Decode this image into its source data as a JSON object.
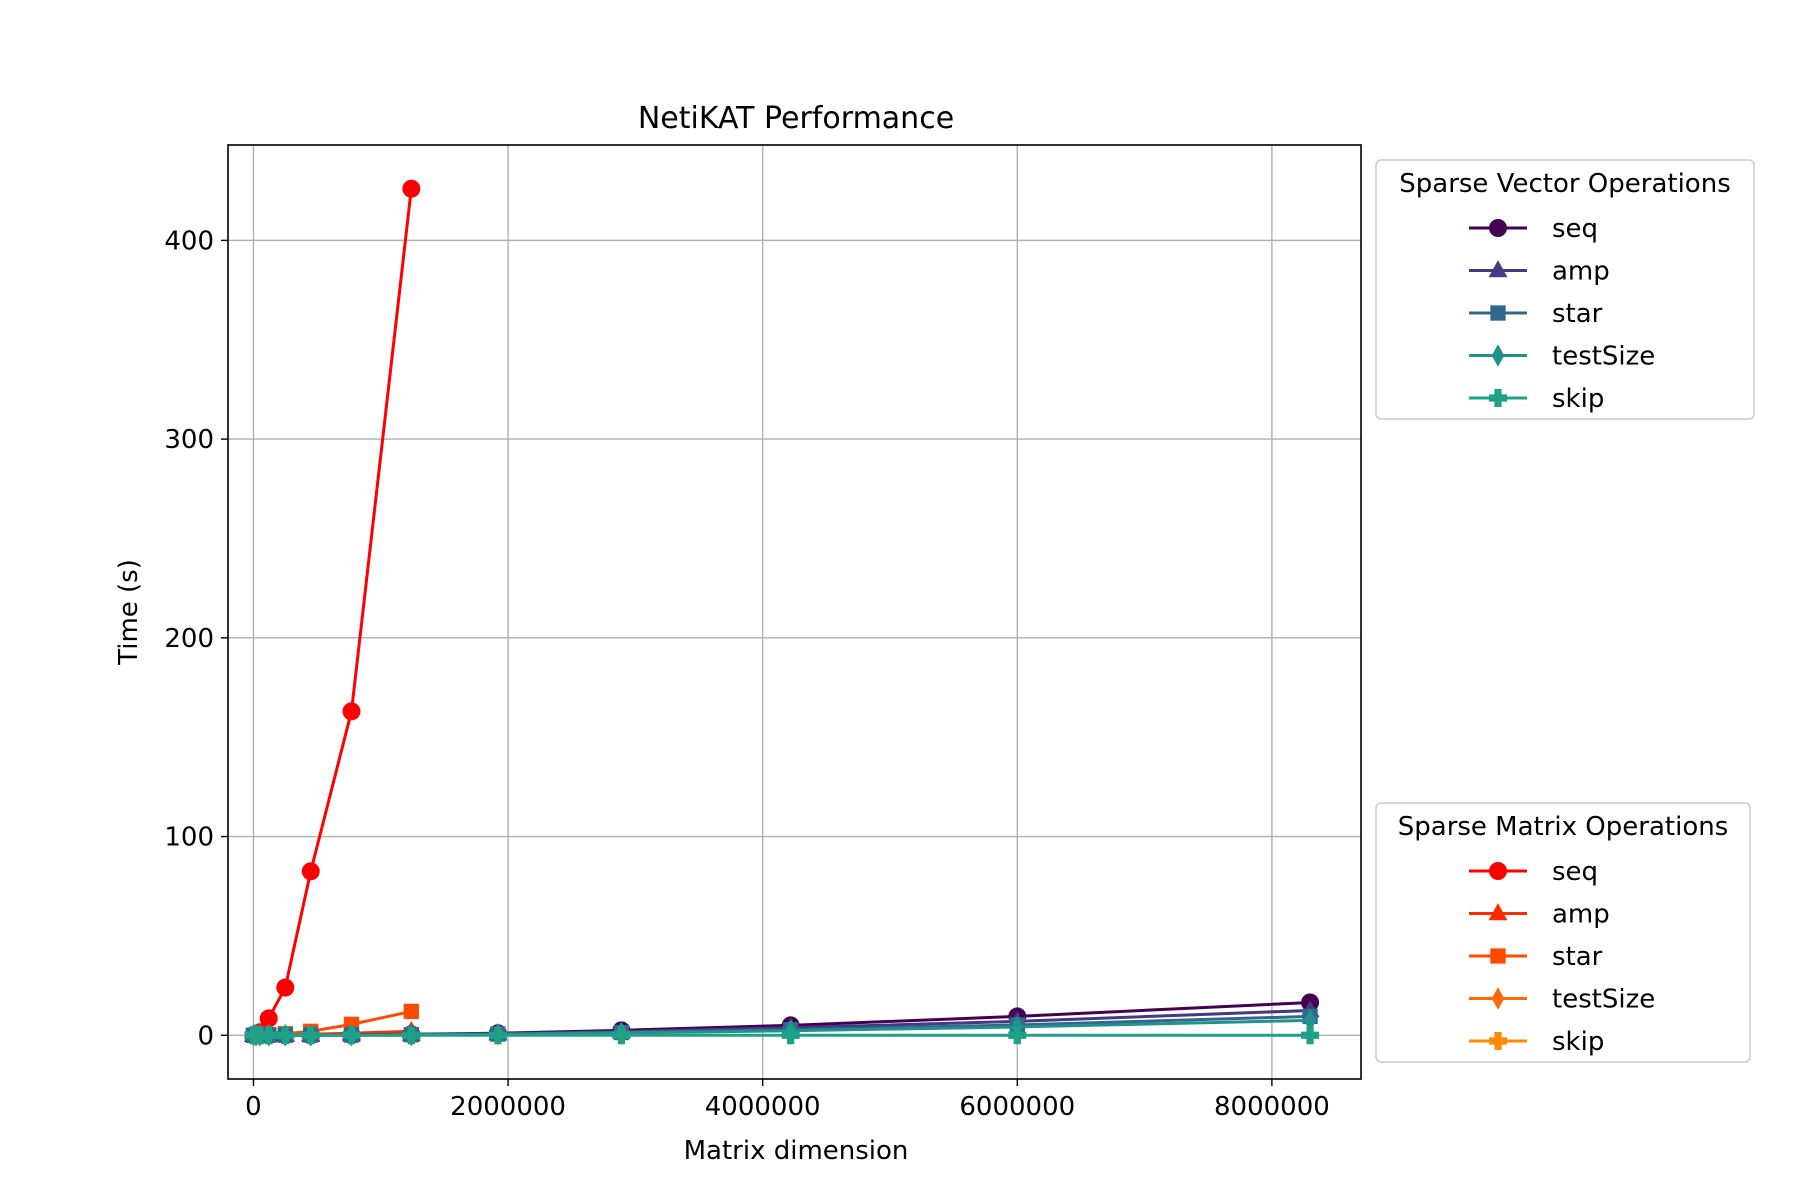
{
  "chart_data": {
    "type": "line",
    "title": "NetiKAT Performance",
    "xlabel": "Matrix dimension",
    "ylabel": "Time (s)",
    "xlim": [
      -200000,
      8700000
    ],
    "ylim": [
      -22,
      448
    ],
    "xticks": [
      0,
      2000000,
      4000000,
      6000000,
      8000000
    ],
    "xtick_labels": [
      "0",
      "2000000",
      "4000000",
      "6000000",
      "8000000"
    ],
    "yticks": [
      0,
      100,
      200,
      300,
      400
    ],
    "ytick_labels": [
      "0",
      "100",
      "200",
      "300",
      "400"
    ],
    "grid": true,
    "legends": [
      {
        "title": "Sparse Vector Operations",
        "placement": "upper-right-outside",
        "series": [
          {
            "name": "seq",
            "marker": "circle",
            "color": "#440154",
            "x": [
              0,
              20000,
              50000,
              120000,
              250000,
              450000,
              770000,
              1240000,
              1920000,
              2890000,
              4220000,
              6000000,
              8300000
            ],
            "y": [
              0,
              0,
              0,
              0,
              0,
              0.1,
              0.2,
              0.5,
              1.0,
              2.5,
              5.0,
              9.5,
              16.5
            ]
          },
          {
            "name": "amp",
            "marker": "triangle",
            "color": "#443983",
            "x": [
              0,
              20000,
              50000,
              120000,
              250000,
              450000,
              770000,
              1240000,
              1920000,
              2890000,
              4220000,
              6000000,
              8300000
            ],
            "y": [
              0,
              0,
              0,
              0,
              0,
              0.1,
              0.2,
              0.4,
              0.8,
              1.8,
              3.8,
              7.0,
              12.5
            ]
          },
          {
            "name": "star",
            "marker": "square",
            "color": "#31688e",
            "x": [
              0,
              20000,
              50000,
              120000,
              250000,
              450000,
              770000,
              1240000,
              1920000,
              2890000,
              4220000,
              6000000,
              8300000
            ],
            "y": [
              0,
              0,
              0,
              0,
              0,
              0.1,
              0.1,
              0.3,
              0.6,
              1.4,
              2.8,
              5.2,
              9.5
            ]
          },
          {
            "name": "testSize",
            "marker": "diamond",
            "color": "#21918c",
            "x": [
              0,
              20000,
              50000,
              120000,
              250000,
              450000,
              770000,
              1240000,
              1920000,
              2890000,
              4220000,
              6000000,
              8300000
            ],
            "y": [
              0,
              0,
              0,
              0,
              0,
              0,
              0.1,
              0.2,
              0.5,
              1.2,
              2.3,
              4.2,
              7.5
            ]
          },
          {
            "name": "skip",
            "marker": "plus",
            "color": "#1fa187",
            "x": [
              0,
              20000,
              50000,
              120000,
              250000,
              450000,
              770000,
              1240000,
              1920000,
              2890000,
              4220000,
              6000000,
              8300000
            ],
            "y": [
              0,
              0,
              0,
              0,
              0,
              0,
              0,
              0,
              0,
              0,
              0,
              0,
              0
            ]
          }
        ]
      },
      {
        "title": "Sparse Matrix Operations",
        "placement": "lower-right-outside",
        "series": [
          {
            "name": "seq",
            "marker": "circle",
            "color": "#ff0000",
            "x": [
              0,
              20000,
              50000,
              120000,
              250000,
              450000,
              770000,
              1240000
            ],
            "y": [
              0,
              0.3,
              1.5,
              8.5,
              24,
              82.5,
              163,
              426
            ]
          },
          {
            "name": "amp",
            "marker": "triangle",
            "color": "#ff2a00",
            "x": [
              0,
              20000,
              50000,
              120000,
              250000,
              450000,
              770000,
              1240000
            ],
            "y": [
              0,
              0,
              0,
              0.1,
              0.2,
              0.5,
              1.0,
              2.0
            ]
          },
          {
            "name": "star",
            "marker": "square",
            "color": "#ff4a00",
            "x": [
              0,
              20000,
              50000,
              120000,
              250000,
              450000,
              770000,
              1240000
            ],
            "y": [
              0,
              0,
              0.1,
              0.3,
              0.8,
              2.0,
              5.5,
              12.0
            ]
          },
          {
            "name": "testSize",
            "marker": "diamond",
            "color": "#ff6a00",
            "x": [
              0,
              20000,
              50000,
              120000,
              250000,
              450000,
              770000,
              1240000
            ],
            "y": [
              0,
              0,
              0,
              0,
              0,
              0,
              0.1,
              0.1
            ]
          },
          {
            "name": "skip",
            "marker": "plus",
            "color": "#ff8c00",
            "x": [
              0,
              20000,
              50000,
              120000,
              250000,
              450000,
              770000,
              1240000
            ],
            "y": [
              0,
              0,
              0,
              0,
              0,
              0,
              0,
              0
            ]
          }
        ]
      }
    ]
  }
}
